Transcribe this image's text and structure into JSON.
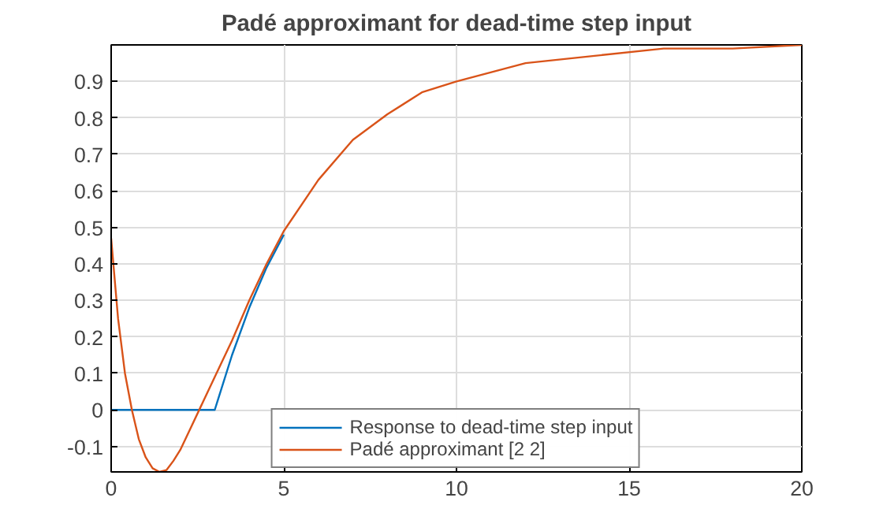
{
  "chart_data": {
    "type": "line",
    "title": "Padé approximant for dead-time step input",
    "xlim": [
      0,
      20
    ],
    "xticks": [
      0,
      5,
      10,
      15,
      20
    ],
    "ylim": [
      -0.17,
      1.0
    ],
    "yticks": [
      -0.1,
      0,
      0.1,
      0.2,
      0.3,
      0.4,
      0.5,
      0.6,
      0.7,
      0.8,
      0.9
    ],
    "grid": true,
    "legend": "bottom",
    "series": [
      {
        "name": "Response to dead-time step input",
        "color": "#0072bd",
        "x": [
          0,
          3,
          3.5,
          4,
          4.5,
          5
        ],
        "values": [
          0,
          0,
          0.15,
          0.28,
          0.39,
          0.48
        ]
      },
      {
        "name": "Padé approximant [2 2]",
        "color": "#d95319",
        "x": [
          0,
          0.2,
          0.4,
          0.6,
          0.8,
          1.0,
          1.2,
          1.4,
          1.6,
          1.8,
          2.0,
          2.3,
          2.6,
          3.0,
          3.5,
          4,
          4.5,
          5,
          6,
          7,
          8,
          9,
          10,
          12,
          14,
          16,
          18,
          20
        ],
        "values": [
          0.47,
          0.25,
          0.1,
          0.0,
          -0.08,
          -0.13,
          -0.16,
          -0.17,
          -0.165,
          -0.14,
          -0.11,
          -0.05,
          0.01,
          0.09,
          0.19,
          0.3,
          0.4,
          0.49,
          0.63,
          0.74,
          0.81,
          0.87,
          0.9,
          0.95,
          0.97,
          0.99,
          0.99,
          1.0
        ]
      }
    ]
  }
}
